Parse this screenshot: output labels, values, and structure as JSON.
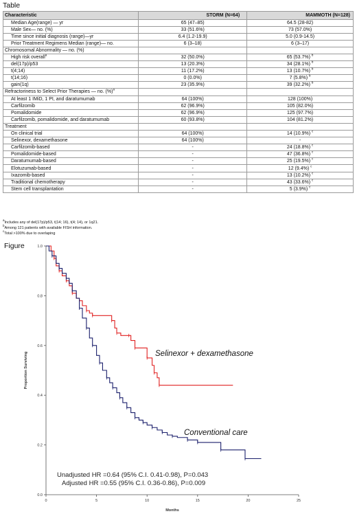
{
  "table_label": "Table",
  "figure_label": "Figure",
  "table": {
    "headers": [
      "Characteristic",
      "STORM (N=64)",
      "MAMMOTH (N=128)"
    ],
    "rows": [
      {
        "kind": "row",
        "label": "Median Age(range) — yr",
        "a": "65 (47–85)",
        "b": "64.5 (28-82)"
      },
      {
        "kind": "row",
        "label": "Male Sex— no. (%)",
        "a": "33 (51.6%)",
        "b": "73 (57.0%)"
      },
      {
        "kind": "row",
        "label": "Time since initial diagnosis (range)—yr",
        "a": "6.4 (1.2-19.9)",
        "b": "5.0 (0.9-14.5)"
      },
      {
        "kind": "row",
        "label": "Prior Treatment Regimens Median (range)— no.",
        "a": "6 (3–18)",
        "b": "6 (3–17)"
      },
      {
        "kind": "section",
        "label": "Chromosomal Abnormality — no. (%)"
      },
      {
        "kind": "row",
        "label": "High risk overall",
        "label_sup": "a",
        "a": "32 (50.0%)",
        "b": "65 (53.7%)",
        "b_sup": "b"
      },
      {
        "kind": "row",
        "label": "del(17p)/p53",
        "a": "13 (20.3%)",
        "b": "34 (28.1%)",
        "b_sup": "b"
      },
      {
        "kind": "row",
        "label": "t(4;14)",
        "a": "11 (17.2%)",
        "b": "13 (10.7%)",
        "b_sup": "b"
      },
      {
        "kind": "row",
        "label": "t(14;16)",
        "a": "0 (0.0%)",
        "b": "7 (5.8%)",
        "b_sup": "b"
      },
      {
        "kind": "row",
        "label": "gain(1q)",
        "a": "23 (35.9%)",
        "b": "39 (32.2%)",
        "b_sup": "b"
      },
      {
        "kind": "section",
        "label": "Refractoriness to Select Prior Therapies — no. (%)",
        "label_sup": "a"
      },
      {
        "kind": "row",
        "label": "At least 1 IMiD, 1 PI, and daratumumab",
        "a": "64 (100%)",
        "b": "128 (100%)"
      },
      {
        "kind": "row",
        "label": "Carfilzomib",
        "a": "62 (96.9%)",
        "b": "105 (82.0%)"
      },
      {
        "kind": "row",
        "label": "Pomalidomide",
        "a": "62 (96.9%)",
        "b": "125 (97.7%)"
      },
      {
        "kind": "row",
        "label": "Carfilzomib, pomalidomide, and daratumumab",
        "a": "60 (93.8%)",
        "b": "104 (81.2%)"
      },
      {
        "kind": "section",
        "label": "Treatment"
      },
      {
        "kind": "row",
        "label": "On clinical trial",
        "a": "64 (100%)",
        "b": "14 (10.9%)",
        "b_sup": "c"
      },
      {
        "kind": "row",
        "label": "Selinexor, dexamethasone",
        "a": "64 (100%)",
        "b": "-"
      },
      {
        "kind": "row",
        "label": "Carfilzomib-based",
        "a": "-",
        "b": "24 (18.8%)",
        "b_sup": "c"
      },
      {
        "kind": "row",
        "label": "Pomalidomide-based",
        "a": "-",
        "b": "47 (36.8%)",
        "b_sup": "c"
      },
      {
        "kind": "row",
        "label": "Daratumumab-based",
        "a": "-",
        "b": "25 (19.5%)",
        "b_sup": "c"
      },
      {
        "kind": "row",
        "label": "Elotuzumab-based",
        "a": "-",
        "b": "12 (9.4%)",
        "b_sup": "c"
      },
      {
        "kind": "row",
        "label": "Ixazomib-based",
        "a": "-",
        "b": "13 (10.2%)",
        "b_sup": "c"
      },
      {
        "kind": "row",
        "label": "Traditional chemotherapy",
        "a": "-",
        "b": "43 (33.6%)",
        "b_sup": "c"
      },
      {
        "kind": "row",
        "label": "Stem cell transplantation",
        "a": "-",
        "b": "5 (3.9%)",
        "b_sup": "c"
      }
    ]
  },
  "footnotes": [
    {
      "mark": "a",
      "text": "Includes any of del(17p)/p53, t(14; 16), t(4; 14), or 1q21."
    },
    {
      "mark": "b",
      "text": "Among 121 patients with available FISH information."
    },
    {
      "mark": "c",
      "text": "Total >100% due to overlaping"
    }
  ],
  "chart_data": {
    "type": "line",
    "xlabel": "Months",
    "ylabel": "Proportion Surviving",
    "xlim": [
      0,
      25
    ],
    "ylim": [
      0,
      1.0
    ],
    "xticks": [
      0,
      5,
      10,
      15,
      20,
      25
    ],
    "yticks": [
      0.0,
      0.2,
      0.4,
      0.6,
      0.8,
      1.0
    ],
    "ytick_labels": [
      "0.0",
      "0.2",
      "0.4",
      "0.6",
      "0.8",
      "1.0"
    ],
    "series": [
      {
        "name": "Selinexor + dexamethasone",
        "color": "#e02020",
        "points": [
          [
            0,
            1.0
          ],
          [
            0.5,
            0.98
          ],
          [
            0.8,
            0.95
          ],
          [
            1.0,
            0.92
          ],
          [
            1.3,
            0.9
          ],
          [
            1.6,
            0.88
          ],
          [
            2.0,
            0.86
          ],
          [
            2.3,
            0.84
          ],
          [
            2.6,
            0.81
          ],
          [
            3.0,
            0.79
          ],
          [
            3.3,
            0.78
          ],
          [
            3.6,
            0.76
          ],
          [
            4.0,
            0.74
          ],
          [
            4.3,
            0.73
          ],
          [
            4.6,
            0.72
          ],
          [
            6.0,
            0.72
          ],
          [
            6.5,
            0.7
          ],
          [
            6.8,
            0.67
          ],
          [
            7.0,
            0.65
          ],
          [
            7.4,
            0.64
          ],
          [
            8.2,
            0.64
          ],
          [
            8.4,
            0.62
          ],
          [
            8.8,
            0.59
          ],
          [
            9.8,
            0.59
          ],
          [
            10.0,
            0.55
          ],
          [
            10.5,
            0.52
          ],
          [
            10.7,
            0.49
          ],
          [
            11.0,
            0.47
          ],
          [
            11.2,
            0.44
          ],
          [
            18.5,
            0.44
          ]
        ],
        "label": "Selinexor + dexamethasone"
      },
      {
        "name": "Conventional care",
        "color": "#1a1f6b",
        "points": [
          [
            0,
            1.0
          ],
          [
            0.3,
            0.98
          ],
          [
            0.6,
            0.96
          ],
          [
            1.0,
            0.93
          ],
          [
            1.3,
            0.91
          ],
          [
            1.6,
            0.89
          ],
          [
            2.0,
            0.87
          ],
          [
            2.3,
            0.85
          ],
          [
            2.6,
            0.82
          ],
          [
            3.0,
            0.79
          ],
          [
            3.3,
            0.75
          ],
          [
            3.6,
            0.71
          ],
          [
            4.0,
            0.67
          ],
          [
            4.3,
            0.63
          ],
          [
            4.6,
            0.6
          ],
          [
            5.0,
            0.56
          ],
          [
            5.3,
            0.53
          ],
          [
            5.6,
            0.5
          ],
          [
            6.0,
            0.47
          ],
          [
            6.3,
            0.45
          ],
          [
            6.6,
            0.43
          ],
          [
            7.0,
            0.41
          ],
          [
            7.3,
            0.39
          ],
          [
            7.6,
            0.37
          ],
          [
            8.0,
            0.35
          ],
          [
            8.4,
            0.33
          ],
          [
            8.8,
            0.31
          ],
          [
            9.2,
            0.3
          ],
          [
            9.6,
            0.29
          ],
          [
            10.0,
            0.28
          ],
          [
            10.5,
            0.27
          ],
          [
            11.0,
            0.26
          ],
          [
            11.5,
            0.25
          ],
          [
            12.0,
            0.24
          ],
          [
            12.5,
            0.235
          ],
          [
            13.0,
            0.23
          ],
          [
            14.0,
            0.22
          ],
          [
            14.5,
            0.22
          ],
          [
            15.0,
            0.21
          ],
          [
            17.0,
            0.21
          ],
          [
            17.3,
            0.18
          ],
          [
            19.5,
            0.18
          ],
          [
            19.7,
            0.145
          ],
          [
            21.3,
            0.145
          ]
        ],
        "label": "Conventional care"
      }
    ],
    "annotations": [
      "Unadjusted HR =0.64 (95% C.I. 0.41-0.98), P=0.043",
      "Adjusted HR =0.55 (95% C.I. 0.36-0.86), P=0.009"
    ]
  }
}
